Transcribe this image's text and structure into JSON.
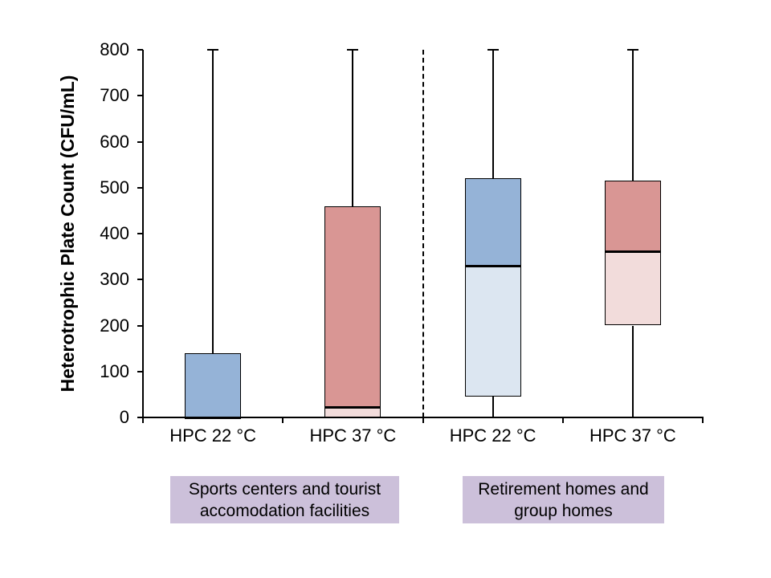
{
  "chart_data": {
    "type": "boxplot",
    "title": "",
    "ylabel": "Heterotrophic Plate Count (CFU/mL)",
    "xlabel": "",
    "ylim": [
      0,
      800
    ],
    "yticks": [
      0,
      100,
      200,
      300,
      400,
      500,
      600,
      700,
      800
    ],
    "grid": "off",
    "legend": "none",
    "colors": {
      "blue_upper": "#95B3D7",
      "blue_lower": "#DCE6F1",
      "red_upper": "#D99694",
      "red_lower": "#F2DCDB",
      "box_border": "#000000",
      "axis": "#000000",
      "group_label_bg": "#CCC0DA",
      "divider": "#000000"
    },
    "boxes": [
      {
        "label": "HPC 22 °C",
        "group": 0,
        "palette": "blue",
        "whisker_low": 0,
        "q1": 0,
        "median": 0,
        "q3": 140,
        "whisker_high": 800
      },
      {
        "label": "HPC 37 °C",
        "group": 0,
        "palette": "red",
        "whisker_low": 0,
        "q1": 0,
        "median": 22,
        "q3": 460,
        "whisker_high": 800
      },
      {
        "label": "HPC 22 °C",
        "group": 1,
        "palette": "blue",
        "whisker_low": 0,
        "q1": 45,
        "median": 330,
        "q3": 520,
        "whisker_high": 800
      },
      {
        "label": "HPC 37 °C",
        "group": 1,
        "palette": "red",
        "whisker_low": 0,
        "q1": 200,
        "median": 360,
        "q3": 515,
        "whisker_high": 800
      }
    ],
    "groups": [
      {
        "label_line1": "Sports centers and tourist",
        "label_line2": "accomodation facilities"
      },
      {
        "label_line1": "Retirement homes and",
        "label_line2": "group homes"
      }
    ],
    "divider_after_box_index": 1
  }
}
